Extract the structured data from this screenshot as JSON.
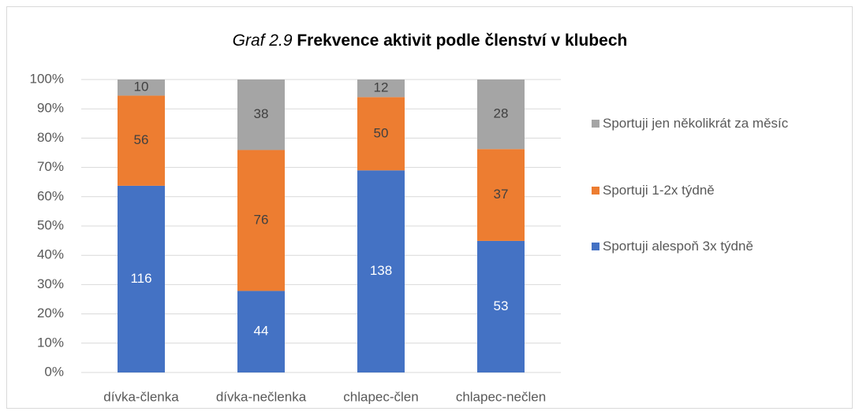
{
  "chart_data": {
    "type": "bar",
    "stacking": "percent",
    "title": [
      "Graf 2.9",
      "Frekvence aktivit podle členství v klubech"
    ],
    "categories": [
      "dívka-členka",
      "dívka-nečlenka",
      "chlapec-člen",
      "chlapec-nečlen"
    ],
    "series": [
      {
        "name": "Sportuji alespoň 3x týdně",
        "color": "#4472c4",
        "values": [
          116,
          44,
          138,
          53
        ]
      },
      {
        "name": "Sportuji 1-2x týdně",
        "color": "#ed7d31",
        "values": [
          56,
          76,
          50,
          37
        ]
      },
      {
        "name": "Sportuji jen několikrát za měsíc",
        "color": "#a5a5a5",
        "values": [
          10,
          38,
          12,
          28
        ]
      }
    ],
    "ylim": [
      0,
      100
    ],
    "yticks": [
      {
        "value": 0,
        "label": "0%"
      },
      {
        "value": 10,
        "label": "10%"
      },
      {
        "value": 20,
        "label": "20%"
      },
      {
        "value": 30,
        "label": "30%"
      },
      {
        "value": 40,
        "label": "40%"
      },
      {
        "value": 50,
        "label": "50%"
      },
      {
        "value": 60,
        "label": "60%"
      },
      {
        "value": 70,
        "label": "70%"
      },
      {
        "value": 80,
        "label": "80%"
      },
      {
        "value": 90,
        "label": "90%"
      },
      {
        "value": 100,
        "label": "100%"
      }
    ],
    "grid": true,
    "legend": "right"
  }
}
